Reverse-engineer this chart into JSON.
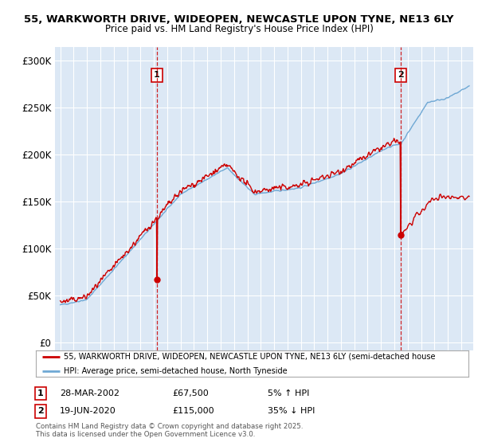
{
  "title_line1": "55, WARKWORTH DRIVE, WIDEOPEN, NEWCASTLE UPON TYNE, NE13 6LY",
  "title_line2": "Price paid vs. HM Land Registry's House Price Index (HPI)",
  "yticks": [
    0,
    50000,
    100000,
    150000,
    200000,
    250000,
    300000
  ],
  "ytick_labels": [
    "£0",
    "£50K",
    "£100K",
    "£150K",
    "£200K",
    "£250K",
    "£300K"
  ],
  "ylim": [
    -8000,
    315000
  ],
  "xlim_left": 1994.6,
  "xlim_right": 2025.9,
  "background_color": "#ffffff",
  "plot_bg_color": "#dce8f5",
  "grid_color": "#ffffff",
  "hpi_color": "#6fa8d4",
  "price_color": "#cc0000",
  "vline_color": "#cc0000",
  "marker1_year": 2002.23,
  "marker1_price": 67500,
  "marker2_year": 2020.47,
  "marker2_price": 115000,
  "legend_label1": "55, WARKWORTH DRIVE, WIDEOPEN, NEWCASTLE UPON TYNE, NE13 6LY (semi-detached house",
  "legend_label2": "HPI: Average price, semi-detached house, North Tyneside",
  "footnote": "Contains HM Land Registry data © Crown copyright and database right 2025.\nThis data is licensed under the Open Government Licence v3.0.",
  "table": [
    {
      "num": "1",
      "date": "28-MAR-2002",
      "price": "£67,500",
      "hpi": "5% ↑ HPI"
    },
    {
      "num": "2",
      "date": "19-JUN-2020",
      "price": "£115,000",
      "hpi": "35% ↓ HPI"
    }
  ]
}
